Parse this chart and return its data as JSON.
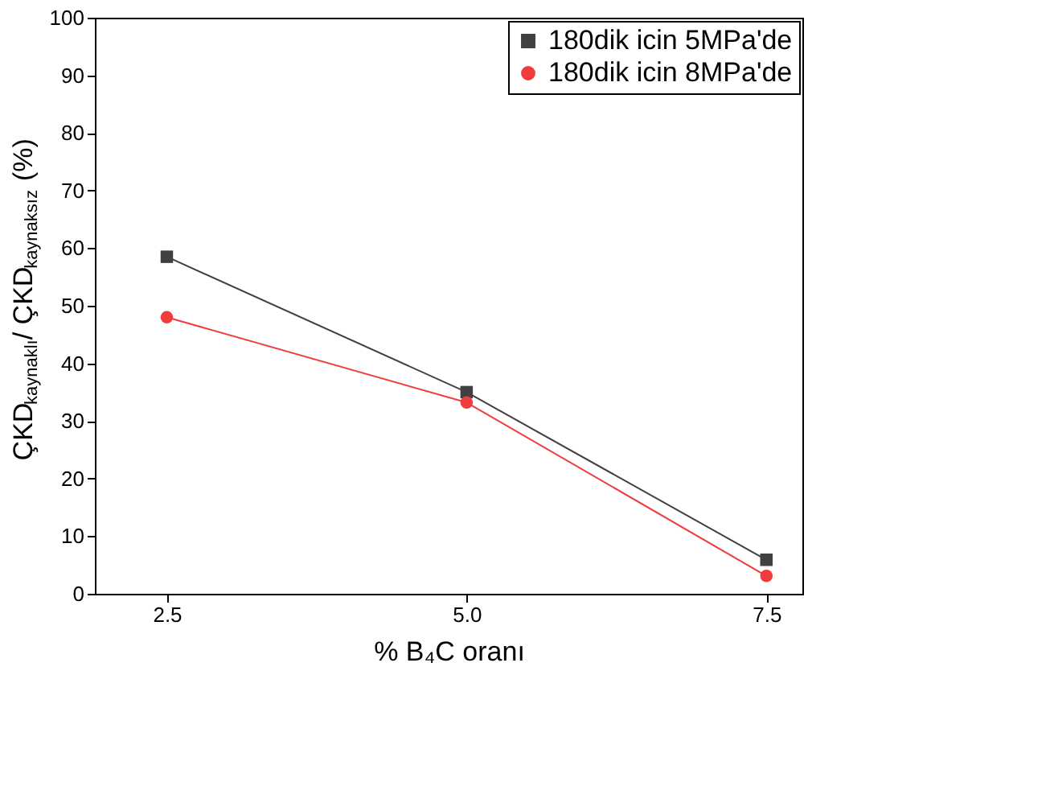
{
  "chart_data": {
    "type": "line",
    "xlabel": "% B₄C oranı",
    "ylabel": "ÇKD$_{kaynaklı}$/ ÇKD$_{kaynaksız}$ (%)",
    "x": [
      2.5,
      5.0,
      7.5
    ],
    "series": [
      {
        "name": "180dik icin 5MPa'de",
        "color": "#404040",
        "marker": "square",
        "values": [
          58.5,
          35,
          5.9
        ]
      },
      {
        "name": "180dik icin 8MPa'de",
        "color": "#f03c3c",
        "marker": "circle",
        "values": [
          48,
          33.2,
          3.1
        ]
      }
    ],
    "xlim": [
      1.9,
      7.8
    ],
    "xticks": [
      {
        "value": 2.5,
        "label": "2.5"
      },
      {
        "value": 5.0,
        "label": "5.0"
      },
      {
        "value": 7.5,
        "label": "7.5"
      }
    ],
    "ylim": [
      0,
      100
    ],
    "yticks": [
      0,
      10,
      20,
      30,
      40,
      50,
      60,
      70,
      80,
      90,
      100
    ],
    "grid": false,
    "legend": "top right",
    "line_style": "solid"
  }
}
